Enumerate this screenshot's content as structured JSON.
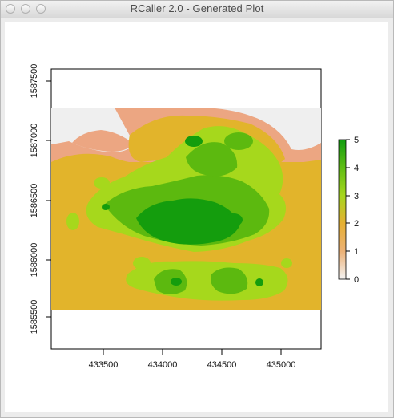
{
  "window": {
    "title": "RCaller 2.0 - Generated Plot"
  },
  "chart_data": {
    "type": "heatmap",
    "title": "",
    "xlabel": "",
    "ylabel": "",
    "xlim": [
      433030,
      435330
    ],
    "ylim": [
      1585250,
      1587600
    ],
    "x_ticks": [
      "433500",
      "434000",
      "434500",
      "435000"
    ],
    "y_ticks": [
      "1585500",
      "1586000",
      "1586500",
      "1587000",
      "1587500"
    ],
    "data_extent": {
      "x": [
        433030,
        435330
      ],
      "y": [
        1585590,
        1587290
      ]
    },
    "legend": {
      "placement": "right",
      "min": 0,
      "max": 5,
      "ticks": [
        "0",
        "1",
        "2",
        "3",
        "4",
        "5"
      ],
      "colors": [
        "#f2f2f2",
        "#ecb176",
        "#e6b032",
        "#a6d61e",
        "#5fbd14",
        "#109d10"
      ]
    },
    "colors": {
      "no_data": "#efefef",
      "very_low": "#eca682",
      "low": "#e2b42b",
      "medium": "#a6d81c",
      "high": "#5cb90f",
      "very_high": "#149d0d"
    }
  }
}
